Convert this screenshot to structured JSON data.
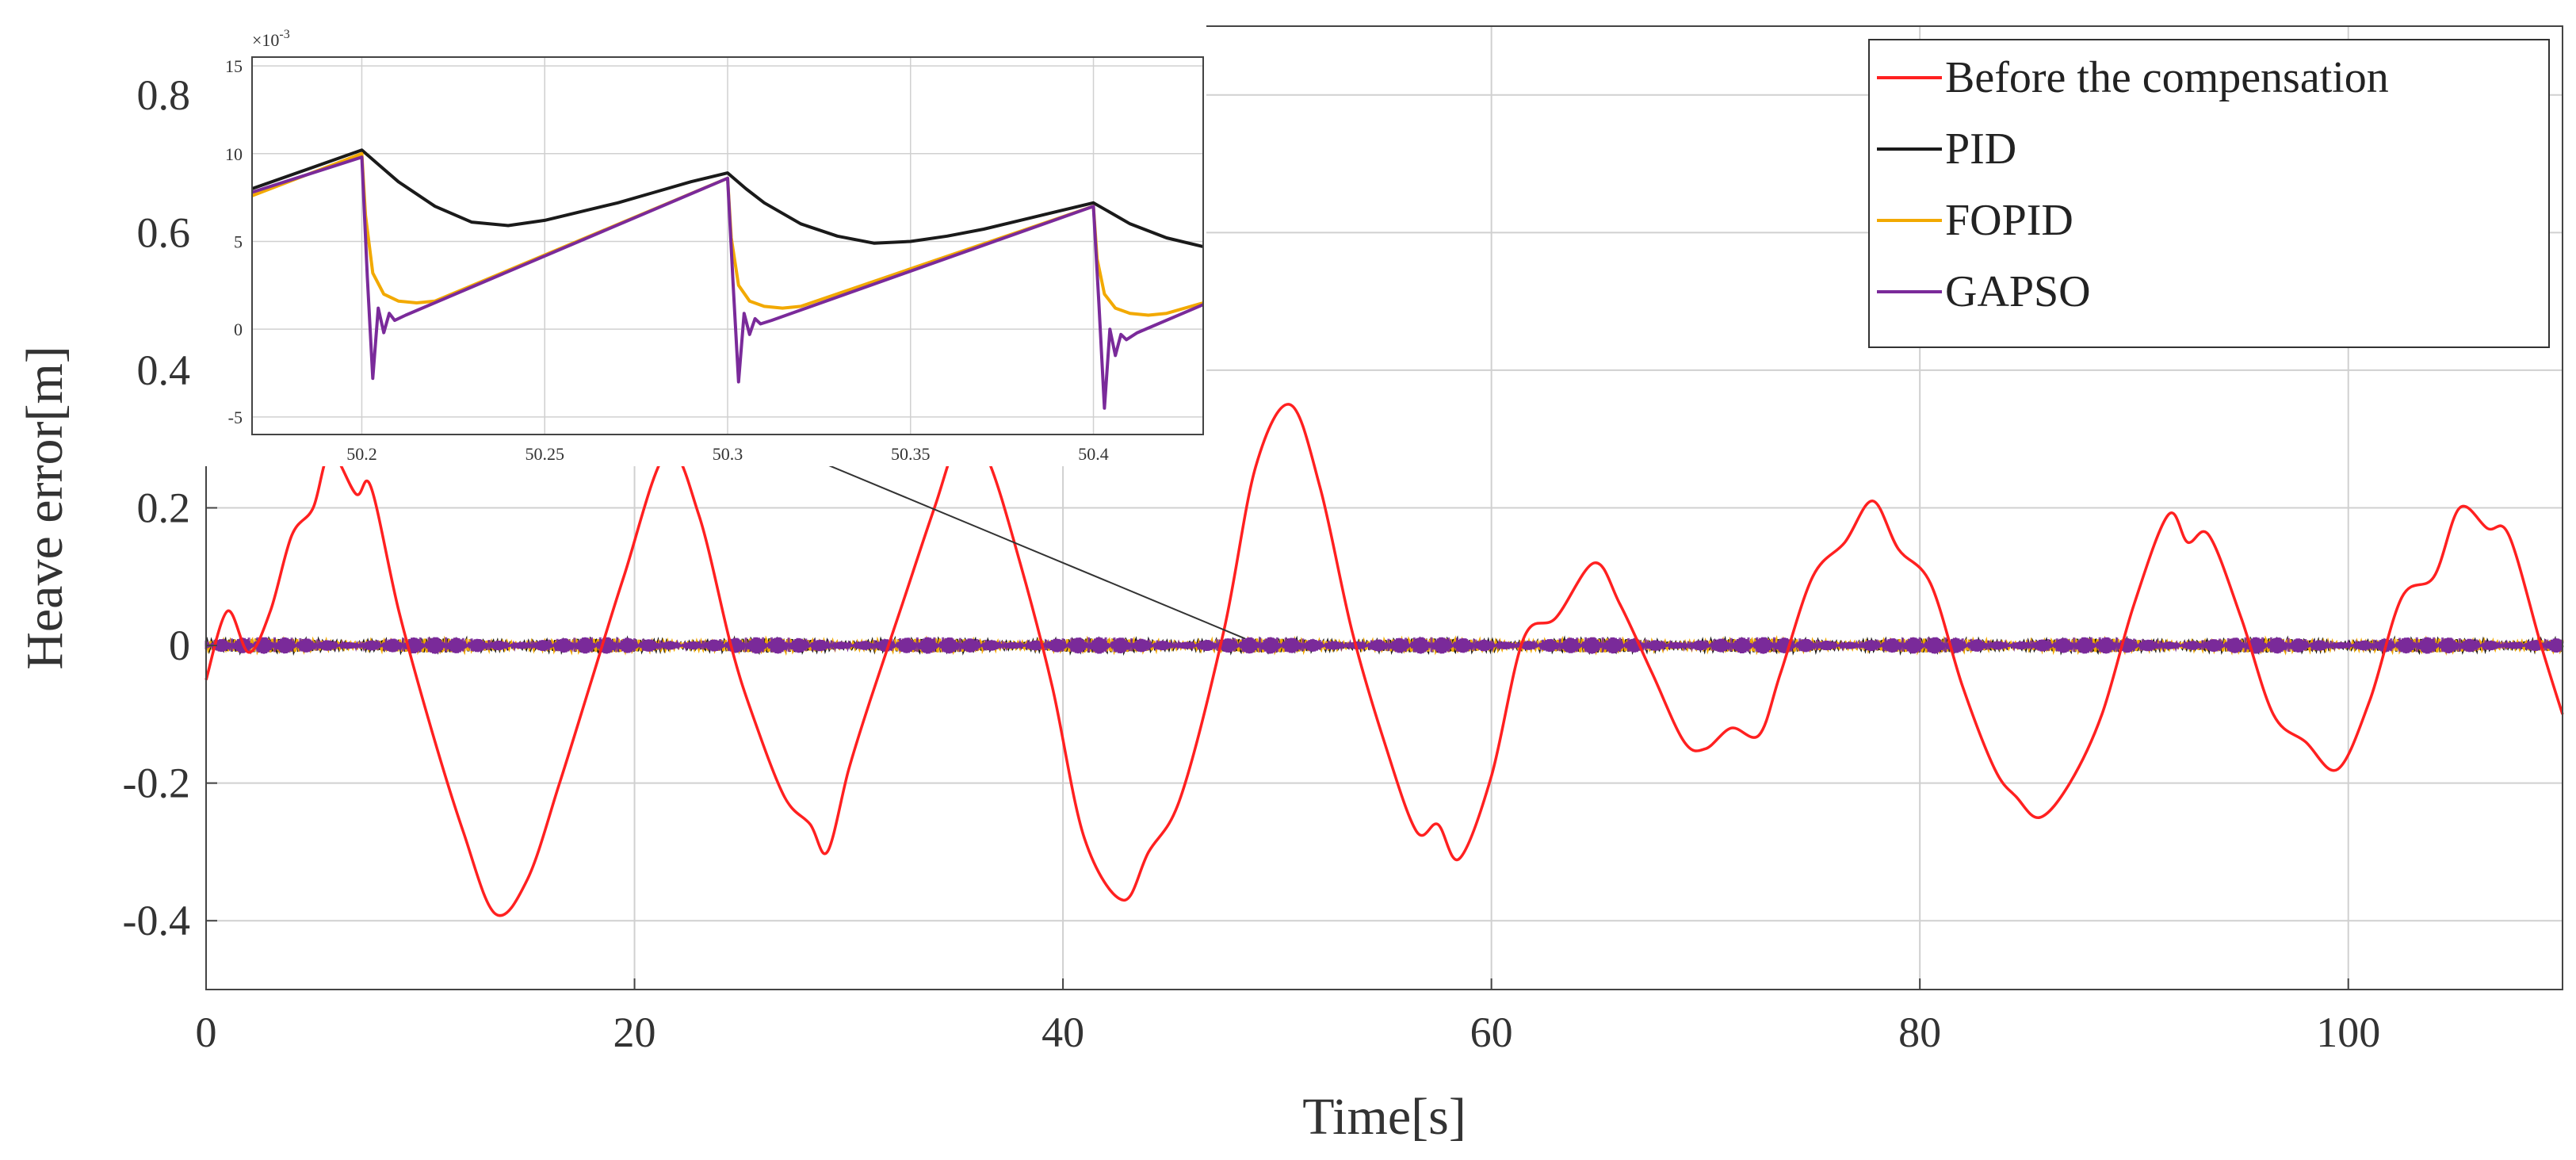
{
  "colors": {
    "before": "#ff2020",
    "pid": "#1a1a1a",
    "fopid": "#f2a900",
    "gapso": "#7a2a9a",
    "grid": "#d0d0d0",
    "axis": "#333333"
  },
  "chart_data": {
    "type": "line",
    "xlabel": "Time[s]",
    "ylabel": "Heave error[m]",
    "xlim": [
      0,
      110
    ],
    "ylim": [
      -0.5,
      0.9
    ],
    "xticks": [
      0,
      20,
      40,
      60,
      80,
      100
    ],
    "xtick_labels": [
      "0",
      "20",
      "40",
      "60",
      "80",
      "100"
    ],
    "yticks": [
      -0.4,
      -0.2,
      0,
      0.2,
      0.4,
      0.6,
      0.8
    ],
    "ytick_labels": [
      "-0.4",
      "-0.2",
      "0",
      "0.2",
      "0.4",
      "0.6",
      "0.8"
    ],
    "grid": true,
    "legend_position": "top-right",
    "legend": [
      "Before the compensation",
      "PID",
      "FOPID",
      "GAPSO"
    ],
    "series": [
      {
        "name": "Before the compensation",
        "color_key": "before",
        "x": [
          0,
          1,
          2,
          3,
          4,
          5,
          5.8,
          7,
          7.7,
          9,
          10.5,
          12,
          13.5,
          15,
          16.5,
          18,
          19.5,
          21.5,
          23,
          24.5,
          25.5,
          27,
          28.2,
          29,
          30,
          31,
          32.5,
          34,
          35.3,
          36.5,
          38,
          39.5,
          41,
          42.8,
          44,
          45.5,
          47.5,
          49,
          50.6,
          52,
          53.5,
          55,
          56.5,
          57.5,
          58.5,
          60,
          61.5,
          63,
          64.8,
          66,
          67.5,
          69,
          70,
          71.2,
          72.5,
          73.5,
          75,
          76.5,
          77.8,
          79,
          80.5,
          82,
          83.5,
          84.5,
          85.6,
          87,
          88.5,
          90,
          91.6,
          92.5,
          93.5,
          95,
          96.5,
          98,
          99.5,
          101,
          102.5,
          104,
          105.2,
          106.5,
          107.5,
          109,
          110
        ],
        "y": [
          -0.05,
          0.05,
          -0.01,
          0.05,
          0.16,
          0.2,
          0.28,
          0.22,
          0.23,
          0.05,
          -0.12,
          -0.27,
          -0.39,
          -0.34,
          -0.2,
          -0.05,
          0.1,
          0.28,
          0.19,
          0.0,
          -0.1,
          -0.22,
          -0.26,
          -0.3,
          -0.18,
          -0.08,
          0.06,
          0.2,
          0.31,
          0.27,
          0.12,
          -0.06,
          -0.28,
          -0.37,
          -0.3,
          -0.22,
          0.02,
          0.26,
          0.35,
          0.23,
          0.02,
          -0.14,
          -0.27,
          -0.26,
          -0.31,
          -0.19,
          0.01,
          0.04,
          0.12,
          0.06,
          -0.04,
          -0.14,
          -0.15,
          -0.12,
          -0.13,
          -0.04,
          0.1,
          0.15,
          0.21,
          0.14,
          0.09,
          -0.06,
          -0.18,
          -0.22,
          -0.25,
          -0.2,
          -0.1,
          0.06,
          0.19,
          0.15,
          0.16,
          0.04,
          -0.1,
          -0.14,
          -0.18,
          -0.08,
          0.07,
          0.1,
          0.2,
          0.17,
          0.16,
          0.0,
          -0.1
        ]
      },
      {
        "name": "PID",
        "color_key": "pid",
        "note": "near-zero oscillation around 0 m, amplitude approx 0.01 m",
        "amplitude": 0.01
      },
      {
        "name": "FOPID",
        "color_key": "fopid",
        "amplitude": 0.01
      },
      {
        "name": "GAPSO",
        "color_key": "gapso",
        "amplitude": 0.012
      }
    ],
    "annotation": {
      "type": "arrow",
      "from_label": "inset",
      "to": [
        48.5,
        0.01
      ]
    },
    "inset": {
      "type": "line",
      "xlim": [
        50.17,
        50.43
      ],
      "ylim": [
        -6,
        15.5
      ],
      "xticks": [
        50.2,
        50.25,
        50.3,
        50.35,
        50.4
      ],
      "xtick_labels": [
        "50.2",
        "50.25",
        "50.3",
        "50.35",
        "50.4"
      ],
      "yticks": [
        -5,
        0,
        5,
        10,
        15
      ],
      "ytick_labels": [
        "-5",
        "0",
        "5",
        "10",
        "15"
      ],
      "y_multiplier": "×10",
      "y_exponent": "-3",
      "grid": true,
      "series": [
        {
          "name": "PID",
          "color_key": "pid",
          "x": [
            50.17,
            50.2,
            50.205,
            50.21,
            50.22,
            50.23,
            50.24,
            50.25,
            50.26,
            50.27,
            50.28,
            50.29,
            50.3,
            50.305,
            50.31,
            50.32,
            50.33,
            50.34,
            50.35,
            50.36,
            50.37,
            50.38,
            50.39,
            50.4,
            50.405,
            50.41,
            50.42,
            50.43
          ],
          "y": [
            8.0,
            10.2,
            9.3,
            8.4,
            7.0,
            6.1,
            5.9,
            6.2,
            6.7,
            7.2,
            7.8,
            8.4,
            8.9,
            8.0,
            7.2,
            6.0,
            5.3,
            4.9,
            5.0,
            5.3,
            5.7,
            6.2,
            6.7,
            7.2,
            6.6,
            6.0,
            5.2,
            4.7
          ]
        },
        {
          "name": "FOPID",
          "color_key": "fopid",
          "x": [
            50.17,
            50.2,
            50.201,
            50.203,
            50.206,
            50.21,
            50.215,
            50.22,
            50.3,
            50.301,
            50.303,
            50.306,
            50.31,
            50.315,
            50.32,
            50.4,
            50.401,
            50.403,
            50.406,
            50.41,
            50.415,
            50.42,
            50.43
          ],
          "y": [
            7.6,
            10.0,
            6.5,
            3.2,
            2.0,
            1.6,
            1.5,
            1.6,
            8.6,
            5.2,
            2.5,
            1.6,
            1.3,
            1.2,
            1.3,
            7.0,
            4.0,
            2.0,
            1.2,
            0.9,
            0.8,
            0.9,
            1.5
          ]
        },
        {
          "name": "GAPSO",
          "color_key": "gapso",
          "x": [
            50.17,
            50.2,
            50.2015,
            50.203,
            50.2045,
            50.206,
            50.2075,
            50.209,
            50.212,
            50.3,
            50.3015,
            50.303,
            50.3045,
            50.306,
            50.3075,
            50.309,
            50.312,
            50.4,
            50.4015,
            50.403,
            50.4045,
            50.406,
            50.4075,
            50.409,
            50.412,
            50.43
          ],
          "y": [
            7.8,
            9.8,
            3.0,
            -2.8,
            1.2,
            -0.2,
            0.9,
            0.5,
            0.8,
            8.6,
            2.6,
            -3.0,
            0.9,
            -0.3,
            0.6,
            0.3,
            0.5,
            7.0,
            1.4,
            -4.5,
            0.0,
            -1.5,
            -0.3,
            -0.6,
            -0.2,
            1.4
          ]
        }
      ]
    }
  }
}
